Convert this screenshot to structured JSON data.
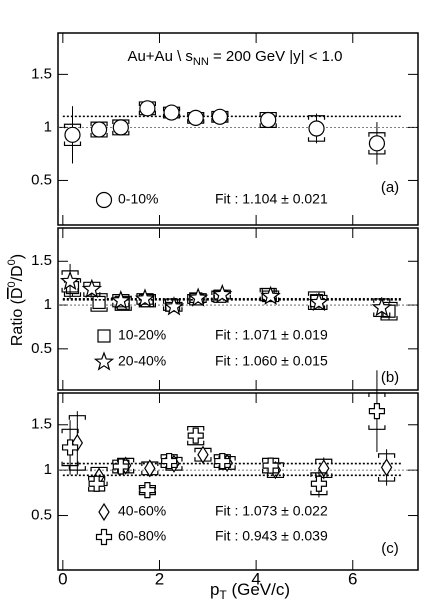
{
  "chart_data": [
    {
      "type": "scatter",
      "title": "Au+Au \\ s",
      "title_sub": "NN",
      "title_rest": " = 200 GeV  |y| < 1.0",
      "label": "(a)",
      "xlim": [
        -0.1,
        7.35
      ],
      "xticks": [
        0,
        2,
        4,
        6
      ],
      "ylim": [
        0.08,
        1.89
      ],
      "yticks": [
        0.5,
        1,
        1.5
      ],
      "reference_line": 1,
      "series": [
        {
          "name": "0-10%",
          "marker": "circle",
          "color": "#000000",
          "fit": 1.104,
          "fit_label": "Fit : 1.104 ± 0.021",
          "x": [
            0.2,
            0.75,
            1.2,
            1.75,
            2.25,
            2.75,
            3.25,
            4.25,
            5.25,
            6.5
          ],
          "values": [
            0.93,
            0.98,
            1.0,
            1.18,
            1.14,
            1.09,
            1.1,
            1.07,
            0.99,
            0.85
          ],
          "errors": [
            0.27,
            0.07,
            0.05,
            0.04,
            0.03,
            0.03,
            0.04,
            0.05,
            0.14,
            0.2
          ],
          "sys": [
            0.1,
            0.07,
            0.07,
            0.06,
            0.05,
            0.05,
            0.05,
            0.07,
            0.12,
            0.1
          ]
        }
      ]
    },
    {
      "type": "scatter",
      "label": "(b)",
      "y_label": [
        "Ratio (",
        "D",
        "0",
        "/D",
        "0",
        ")"
      ],
      "xlim": [
        -0.1,
        7.35
      ],
      "xticks": [
        0,
        2,
        4,
        6
      ],
      "ylim": [
        0.03,
        1.88
      ],
      "yticks": [
        0.5,
        1,
        1.5
      ],
      "reference_line": 1,
      "series": [
        {
          "name": "10-20%",
          "marker": "square",
          "color": "#000000",
          "fit": 1.071,
          "fit_label": "Fit : 1.071 ± 0.019",
          "x": [
            0.2,
            0.75,
            1.25,
            1.75,
            2.25,
            2.75,
            3.25,
            4.25,
            5.25,
            6.75
          ],
          "values": [
            1.2,
            1.03,
            1.02,
            1.05,
            1.0,
            1.07,
            1.1,
            1.12,
            1.05,
            0.93
          ],
          "errors": [
            0.1,
            0.04,
            0.03,
            0.03,
            0.03,
            0.03,
            0.04,
            0.05,
            0.08,
            0.1
          ],
          "sys": [
            0.1,
            0.1,
            0.08,
            0.07,
            0.06,
            0.05,
            0.06,
            0.07,
            0.1,
            0.1
          ]
        },
        {
          "name": "20-40%",
          "marker": "star",
          "color": "#000000",
          "fit": 1.06,
          "fit_label": "Fit : 1.060 ± 0.015",
          "x": [
            0.15,
            0.6,
            1.2,
            1.7,
            2.3,
            2.8,
            3.3,
            4.3,
            5.3,
            6.6
          ],
          "values": [
            1.27,
            1.18,
            1.05,
            1.07,
            0.98,
            1.08,
            1.12,
            1.1,
            1.03,
            0.97
          ],
          "errors": [
            0.2,
            0.06,
            0.04,
            0.03,
            0.03,
            0.03,
            0.04,
            0.05,
            0.07,
            0.12
          ],
          "sys": [
            0.12,
            0.08,
            0.07,
            0.06,
            0.05,
            0.05,
            0.05,
            0.06,
            0.08,
            0.1
          ]
        }
      ]
    },
    {
      "type": "scatter",
      "label": "(c)",
      "x_label": [
        "p",
        "T",
        " (GeV/c)"
      ],
      "xlim": [
        -0.1,
        7.35
      ],
      "xticks": [
        0,
        2,
        4,
        6
      ],
      "ylim": [
        -0.1,
        1.85
      ],
      "yticks": [
        0.5,
        1,
        1.5
      ],
      "reference_line": 1,
      "series": [
        {
          "name": "40-60%",
          "marker": "diamond",
          "color": "#000000",
          "fit": 1.073,
          "fit_label": "Fit : 1.073 ± 0.022",
          "x": [
            0.3,
            0.75,
            1.3,
            1.8,
            2.3,
            2.9,
            3.4,
            4.4,
            5.4,
            6.7
          ],
          "values": [
            1.3,
            0.93,
            1.05,
            1.02,
            1.07,
            1.17,
            1.08,
            1.0,
            1.02,
            1.03
          ],
          "errors": [
            0.35,
            0.08,
            0.06,
            0.05,
            0.05,
            0.05,
            0.06,
            0.08,
            0.12,
            0.2
          ],
          "sys": [
            0.3,
            0.1,
            0.08,
            0.07,
            0.07,
            0.07,
            0.07,
            0.08,
            0.1,
            0.15
          ]
        },
        {
          "name": "60-80%",
          "marker": "cross",
          "color": "#000000",
          "fit": 0.943,
          "fit_label": "Fit : 0.943 ± 0.039",
          "x": [
            0.15,
            0.7,
            1.2,
            1.75,
            2.2,
            2.75,
            3.3,
            4.3,
            5.3,
            6.5
          ],
          "values": [
            1.25,
            0.85,
            1.04,
            0.78,
            1.1,
            1.38,
            1.1,
            1.05,
            0.85,
            1.65
          ],
          "errors": [
            0.3,
            0.08,
            0.06,
            0.05,
            0.06,
            0.07,
            0.07,
            0.09,
            0.15,
            0.45
          ],
          "sys": [
            0.2,
            0.08,
            0.07,
            0.05,
            0.07,
            0.1,
            0.07,
            0.08,
            0.12,
            0.2
          ]
        }
      ]
    }
  ]
}
